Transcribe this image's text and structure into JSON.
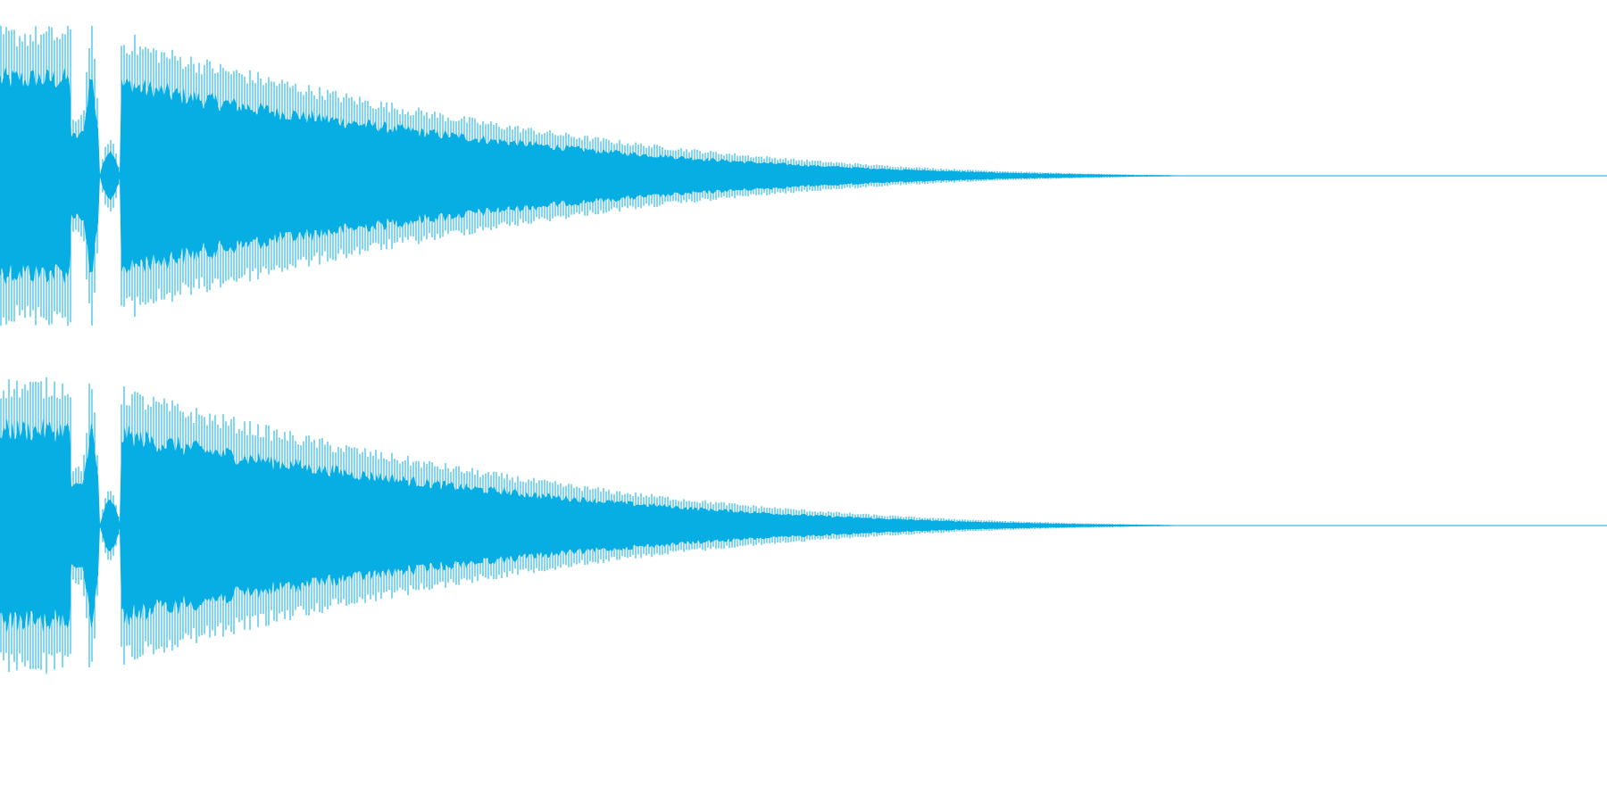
{
  "waveform": {
    "color": "#06aee4",
    "background": "#ffffff",
    "channels": [
      {
        "name": "channel-1"
      },
      {
        "name": "channel-2"
      }
    ],
    "envelope": {
      "attack_peak": 1.0,
      "gap_dip_positions": [
        0.05,
        0.08
      ],
      "decay_tail_end": 0.83,
      "visible_end": 1.0
    }
  }
}
